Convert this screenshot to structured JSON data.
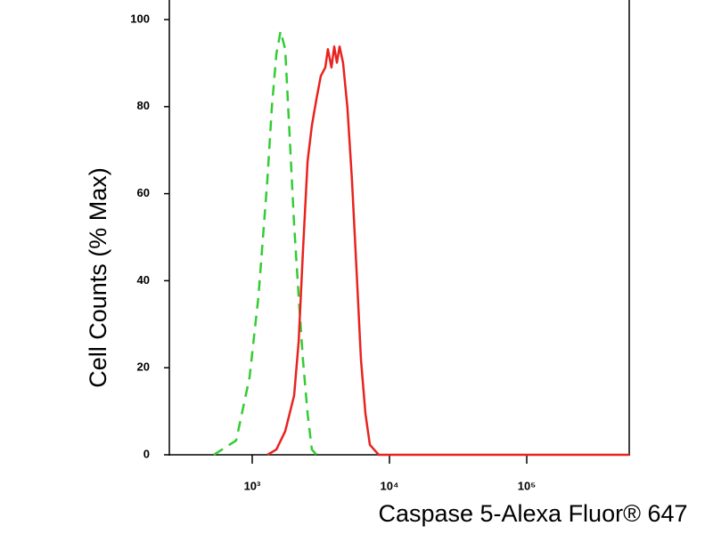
{
  "chart_data": {
    "type": "line",
    "xlabel": "Caspase 5-Alexa Fluor® 647",
    "ylabel": "Cell Counts (% Max)",
    "xscale": "log",
    "xlim": [
      249,
      558000
    ],
    "ylim": [
      0,
      104.5
    ],
    "xticks": [
      {
        "value": 1000,
        "label": "10³"
      },
      {
        "value": 10000,
        "label": "10⁴"
      },
      {
        "value": 100000,
        "label": "10⁵"
      }
    ],
    "yticks": [
      0,
      20,
      40,
      60,
      80,
      100
    ],
    "series": [
      {
        "color": "#33cc33",
        "dashed": true,
        "x": [
          525,
          764,
          956,
          1110,
          1290,
          1390,
          1500,
          1610,
          1740,
          1870,
          2020,
          2180,
          2340,
          2530,
          2720,
          2940
        ],
        "values": [
          0,
          3.3,
          17.8,
          36.4,
          63.2,
          79.8,
          92.1,
          97.3,
          93.2,
          73.6,
          52.9,
          36.4,
          21.9,
          9.5,
          1.2,
          0
        ]
      },
      {
        "color": "#e8231f",
        "dashed": false,
        "x": [
          1290,
          1500,
          1740,
          2020,
          2180,
          2340,
          2530,
          2720,
          2940,
          3160,
          3410,
          3560,
          3780,
          3960,
          4140,
          4330,
          4590,
          4940,
          5330,
          5750,
          6200,
          6680,
          7200,
          8360,
          558000
        ],
        "values": [
          0,
          1.2,
          5.4,
          13.6,
          26,
          46.7,
          67.4,
          75.6,
          81.8,
          87,
          89,
          93.2,
          89,
          93.8,
          90.1,
          93.8,
          90.1,
          79.8,
          63.2,
          42.6,
          21.9,
          9.5,
          2.3,
          0,
          0
        ]
      }
    ]
  }
}
